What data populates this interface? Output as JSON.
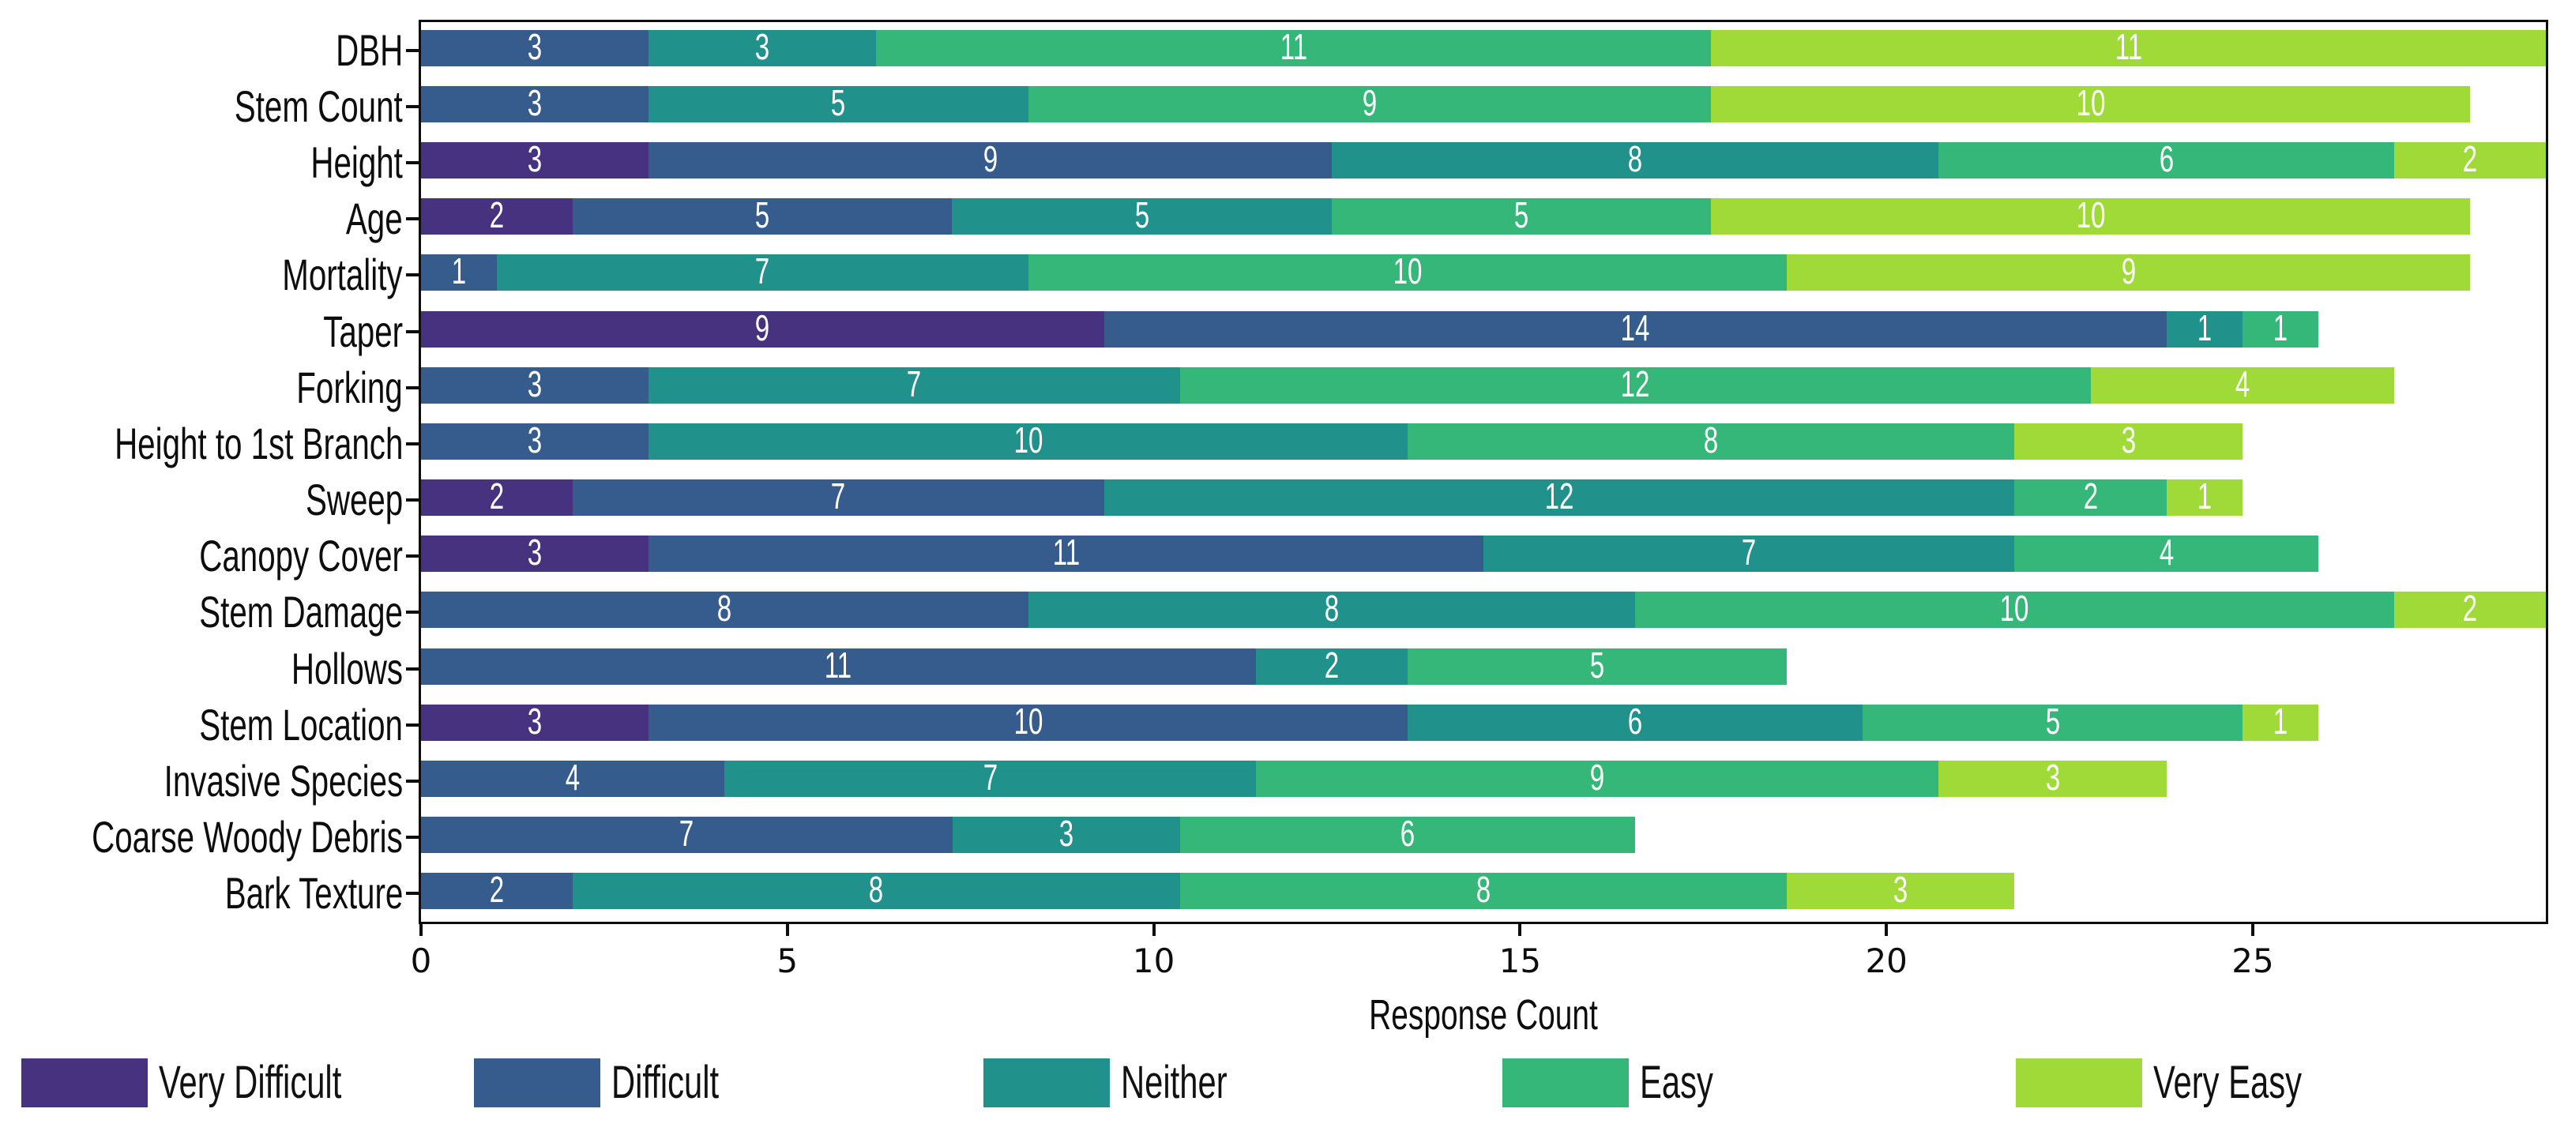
{
  "figure": {
    "background": "#ffffff",
    "axis_color": "#0d0d0d",
    "bar_label_color": "#ffffff"
  },
  "axes": {
    "xlabel": "Response Count",
    "xticks": [
      "0",
      "5",
      "10",
      "15",
      "20",
      "25"
    ]
  },
  "legend": {
    "position": "bottom",
    "items": [
      {
        "label": "Very Difficult",
        "color": "#46327e"
      },
      {
        "label": "Difficult",
        "color": "#365c8d"
      },
      {
        "label": "Neither",
        "color": "#21918c"
      },
      {
        "label": "Easy",
        "color": "#35b779"
      },
      {
        "label": "Very Easy",
        "color": "#a0da39"
      }
    ]
  },
  "chart_data": {
    "type": "bar",
    "orientation": "horizontal",
    "stacked": true,
    "title": "",
    "xlabel": "Response Count",
    "ylabel": "",
    "xticks": [
      0,
      5,
      10,
      15,
      20,
      25
    ],
    "xlim_tick_units": [
      0,
      29
    ],
    "xlim_bar_units": [
      0,
      28
    ],
    "grid": false,
    "legend_position": "bottom",
    "levels": [
      "Very Difficult",
      "Difficult",
      "Neither",
      "Easy",
      "Very Easy"
    ],
    "colors": {
      "Very Difficult": "#46327e",
      "Difficult": "#365c8d",
      "Neither": "#21918c",
      "Easy": "#35b779",
      "Very Easy": "#a0da39"
    },
    "rows": [
      {
        "category": "DBH",
        "values": {
          "Very Difficult": 0,
          "Difficult": 3,
          "Neither": 3,
          "Easy": 11,
          "Very Easy": 11
        }
      },
      {
        "category": "Stem Count",
        "values": {
          "Very Difficult": 0,
          "Difficult": 3,
          "Neither": 5,
          "Easy": 9,
          "Very Easy": 10
        }
      },
      {
        "category": "Height",
        "values": {
          "Very Difficult": 3,
          "Difficult": 9,
          "Neither": 8,
          "Easy": 6,
          "Very Easy": 2
        }
      },
      {
        "category": "Age",
        "values": {
          "Very Difficult": 2,
          "Difficult": 5,
          "Neither": 5,
          "Easy": 5,
          "Very Easy": 10
        }
      },
      {
        "category": "Mortality",
        "values": {
          "Very Difficult": 0,
          "Difficult": 1,
          "Neither": 7,
          "Easy": 10,
          "Very Easy": 9
        }
      },
      {
        "category": "Taper",
        "values": {
          "Very Difficult": 9,
          "Difficult": 14,
          "Neither": 1,
          "Easy": 1,
          "Very Easy": 0
        }
      },
      {
        "category": "Forking",
        "values": {
          "Very Difficult": 0,
          "Difficult": 3,
          "Neither": 7,
          "Easy": 12,
          "Very Easy": 4
        }
      },
      {
        "category": "Height to 1st Branch",
        "values": {
          "Very Difficult": 0,
          "Difficult": 3,
          "Neither": 10,
          "Easy": 8,
          "Very Easy": 3
        }
      },
      {
        "category": "Sweep",
        "values": {
          "Very Difficult": 2,
          "Difficult": 7,
          "Neither": 12,
          "Easy": 2,
          "Very Easy": 1
        }
      },
      {
        "category": "Canopy Cover",
        "values": {
          "Very Difficult": 3,
          "Difficult": 11,
          "Neither": 7,
          "Easy": 4,
          "Very Easy": 0
        }
      },
      {
        "category": "Stem Damage",
        "values": {
          "Very Difficult": 0,
          "Difficult": 8,
          "Neither": 8,
          "Easy": 10,
          "Very Easy": 2
        }
      },
      {
        "category": "Hollows",
        "values": {
          "Very Difficult": 0,
          "Difficult": 11,
          "Neither": 2,
          "Easy": 5,
          "Very Easy": 0
        }
      },
      {
        "category": "Stem Location",
        "values": {
          "Very Difficult": 3,
          "Difficult": 10,
          "Neither": 6,
          "Easy": 5,
          "Very Easy": 1
        }
      },
      {
        "category": "Invasive Species",
        "values": {
          "Very Difficult": 0,
          "Difficult": 4,
          "Neither": 7,
          "Easy": 9,
          "Very Easy": 3
        }
      },
      {
        "category": "Coarse Woody Debris",
        "values": {
          "Very Difficult": 0,
          "Difficult": 7,
          "Neither": 3,
          "Easy": 6,
          "Very Easy": 0
        }
      },
      {
        "category": "Bark Texture",
        "values": {
          "Very Difficult": 0,
          "Difficult": 2,
          "Neither": 8,
          "Easy": 8,
          "Very Easy": 3
        }
      }
    ]
  }
}
